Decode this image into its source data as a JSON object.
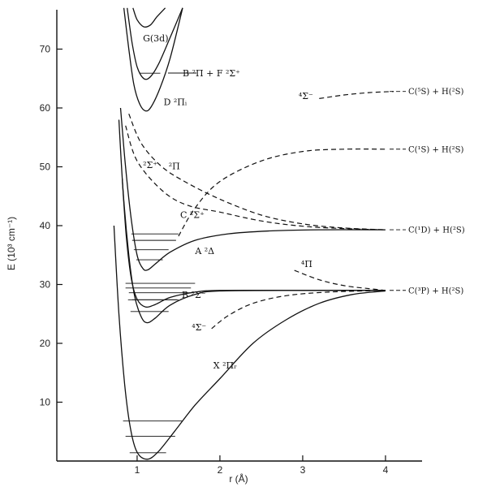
{
  "chart_data": {
    "type": "line",
    "title": "",
    "xlabel": "r (Å)",
    "ylabel": "E (10³ cm⁻¹)",
    "xlim": [
      0,
      4.8
    ],
    "ylim": [
      0,
      77
    ],
    "x_ticks": [
      1,
      2,
      3,
      4
    ],
    "y_ticks": [
      10,
      20,
      30,
      40,
      50,
      60,
      70
    ],
    "grid": false,
    "legend": "none",
    "series": [
      {
        "name": "X ²Πᵣ",
        "style": "solid",
        "points": [
          [
            0.72,
            40
          ],
          [
            0.78,
            25
          ],
          [
            0.85,
            13
          ],
          [
            0.92,
            5.5
          ],
          [
            1.0,
            1.5
          ],
          [
            1.12,
            0.3
          ],
          [
            1.25,
            1.5
          ],
          [
            1.45,
            5
          ],
          [
            1.7,
            9.5
          ],
          [
            2.0,
            14
          ],
          [
            2.4,
            20
          ],
          [
            2.8,
            24
          ],
          [
            3.2,
            26.8
          ],
          [
            3.6,
            28.3
          ],
          [
            4.0,
            28.9
          ]
        ]
      },
      {
        "name": "B ²Σ⁻",
        "style": "solid",
        "points": [
          [
            0.82,
            48
          ],
          [
            0.87,
            38
          ],
          [
            0.93,
            31
          ],
          [
            1.0,
            27.5
          ],
          [
            1.1,
            26.2
          ],
          [
            1.22,
            26.6
          ],
          [
            1.4,
            27.8
          ],
          [
            1.7,
            28.7
          ],
          [
            2.0,
            29
          ],
          [
            3.0,
            29
          ],
          [
            4.0,
            29
          ]
        ]
      },
      {
        "name": "A ²Δ",
        "style": "solid",
        "points": [
          [
            0.78,
            58
          ],
          [
            0.83,
            46
          ],
          [
            0.9,
            35
          ],
          [
            0.97,
            28
          ],
          [
            1.05,
            24.5
          ],
          [
            1.12,
            23.5
          ],
          [
            1.22,
            24.3
          ],
          [
            1.4,
            26.5
          ],
          [
            1.7,
            28.3
          ],
          [
            2.0,
            28.9
          ],
          [
            3.0,
            29
          ],
          [
            4.0,
            29
          ]
        ]
      },
      {
        "name": "C ²Σ⁺",
        "style": "solid",
        "points": [
          [
            0.8,
            60
          ],
          [
            0.86,
            50
          ],
          [
            0.93,
            41
          ],
          [
            1.0,
            35
          ],
          [
            1.07,
            32.7
          ],
          [
            1.13,
            32.5
          ],
          [
            1.22,
            33.5
          ],
          [
            1.4,
            35.5
          ],
          [
            1.7,
            37.5
          ],
          [
            2.1,
            38.6
          ],
          [
            2.6,
            39.1
          ],
          [
            3.2,
            39.3
          ],
          [
            4.0,
            39.3
          ]
        ]
      },
      {
        "name": "D ²Πᵢ",
        "style": "solid",
        "points": [
          [
            0.84,
            77
          ],
          [
            0.9,
            70
          ],
          [
            0.96,
            64
          ],
          [
            1.03,
            60.7
          ],
          [
            1.1,
            59.5
          ],
          [
            1.17,
            60.2
          ],
          [
            1.28,
            63.5
          ],
          [
            1.4,
            68.5
          ],
          [
            1.55,
            77
          ]
        ]
      },
      {
        "name": "B ²Π + F ²Σ⁺",
        "style": "solid",
        "points": [
          [
            0.88,
            77
          ],
          [
            0.94,
            71
          ],
          [
            1.0,
            67
          ],
          [
            1.08,
            65
          ],
          [
            1.16,
            65.3
          ],
          [
            1.26,
            67.5
          ],
          [
            1.4,
            72
          ],
          [
            1.55,
            77
          ]
        ]
      },
      {
        "name": "G (3d)",
        "style": "solid",
        "points": [
          [
            0.95,
            77
          ],
          [
            1.0,
            75
          ],
          [
            1.08,
            73.8
          ],
          [
            1.16,
            74.1
          ],
          [
            1.24,
            75.5
          ],
          [
            1.34,
            77
          ]
        ]
      },
      {
        "name": "⁴Σ⁻ (lower)",
        "style": "dashed",
        "points": [
          [
            1.9,
            22.5
          ],
          [
            2.1,
            24.7
          ],
          [
            2.4,
            26.8
          ],
          [
            2.8,
            28.1
          ],
          [
            3.3,
            28.7
          ],
          [
            4.0,
            29
          ]
        ]
      },
      {
        "name": "⁴Π",
        "style": "dashed",
        "points": [
          [
            2.9,
            32.4
          ],
          [
            3.2,
            30.8
          ],
          [
            3.5,
            29.8
          ],
          [
            3.8,
            29.3
          ],
          [
            4.0,
            29
          ]
        ]
      },
      {
        "name": "²Σ⁺",
        "style": "dashed",
        "points": [
          [
            0.86,
            57
          ],
          [
            1.0,
            51
          ],
          [
            1.3,
            46
          ],
          [
            1.6,
            43.5
          ],
          [
            2.0,
            42.3
          ],
          [
            2.5,
            40.8
          ],
          [
            3.0,
            39.9
          ],
          [
            3.5,
            39.5
          ],
          [
            4.0,
            39.3
          ]
        ]
      },
      {
        "name": "²Π",
        "style": "dashed",
        "points": [
          [
            0.9,
            59
          ],
          [
            1.05,
            54
          ],
          [
            1.3,
            50
          ],
          [
            1.6,
            47.3
          ],
          [
            2.0,
            44.5
          ],
          [
            2.5,
            41.8
          ],
          [
            3.0,
            40.3
          ],
          [
            3.5,
            39.6
          ],
          [
            4.0,
            39.3
          ]
        ]
      },
      {
        "name": "⁴Σ⁻ (upper)",
        "style": "dashed",
        "points": [
          [
            1.5,
            38.2
          ],
          [
            1.7,
            43
          ],
          [
            2.0,
            47.5
          ],
          [
            2.5,
            51
          ],
          [
            3.0,
            52.6
          ],
          [
            3.5,
            53
          ],
          [
            4.0,
            53
          ]
        ]
      },
      {
        "name": "⁴Σ⁻ (top)",
        "style": "dashed",
        "points": [
          [
            3.2,
            61.6
          ],
          [
            3.5,
            62.2
          ],
          [
            3.8,
            62.6
          ],
          [
            4.1,
            62.8
          ]
        ]
      }
    ],
    "vibrational_levels": [
      {
        "state": "X ²Πᵣ",
        "levels": [
          [
            1.4,
            0.91,
            1.35
          ],
          [
            4.2,
            0.86,
            1.46
          ],
          [
            6.8,
            0.83,
            1.55
          ]
        ]
      },
      {
        "state": "B ²Σ⁻",
        "levels": [
          [
            27.4,
            0.94,
            1.48
          ],
          [
            28.6,
            0.9,
            1.66
          ]
        ]
      },
      {
        "state": "A ²Δ",
        "levels": [
          [
            25.4,
            0.92,
            1.38
          ],
          [
            27.4,
            0.89,
            1.5
          ],
          [
            29.4,
            0.86,
            1.65
          ],
          [
            30.2,
            0.86,
            1.7
          ]
        ]
      },
      {
        "state": "C ²Σ⁺",
        "levels": [
          [
            34.2,
            0.99,
            1.31
          ],
          [
            35.9,
            0.96,
            1.38
          ],
          [
            37.5,
            0.94,
            1.47
          ],
          [
            38.6,
            0.93,
            1.5
          ]
        ]
      },
      {
        "state": "B ²Π + F ²Σ⁺",
        "levels": [
          [
            65.9,
            1.03,
            1.28
          ]
        ]
      }
    ],
    "labels": [
      {
        "text": "G(3d)",
        "x": 1.07,
        "y": 71.3
      },
      {
        "text": "B ²Π + F ²Σ⁺",
        "x": 1.55,
        "y": 65.4
      },
      {
        "text": "D ²Πᵢ",
        "x": 1.32,
        "y": 60.5
      },
      {
        "text": "⁴Σ⁻",
        "x": 2.95,
        "y": 61.5
      },
      {
        "text": "²Σ⁺",
        "x": 1.07,
        "y": 49.8
      },
      {
        "text": "²Π",
        "x": 1.38,
        "y": 49.6
      },
      {
        "text": "C ²Σ⁺",
        "x": 1.52,
        "y": 41.3
      },
      {
        "text": "A ²Δ",
        "x": 1.7,
        "y": 35.2
      },
      {
        "text": "B ²Σ⁻",
        "x": 1.54,
        "y": 27.7
      },
      {
        "text": "⁴Σ⁻",
        "x": 1.66,
        "y": 22.2
      },
      {
        "text": "⁴Π",
        "x": 2.98,
        "y": 33.0
      },
      {
        "text": "X ²Πᵣ",
        "x": 1.92,
        "y": 15.7
      }
    ],
    "asymptote_labels": [
      {
        "text": "C(⁵S) + H(²S)",
        "y": 62.8
      },
      {
        "text": "C(¹S) + H(²S)",
        "y": 53.0
      },
      {
        "text": "C(¹D) + H(²S)",
        "y": 39.3
      },
      {
        "text": "C(³P) + H(²S)",
        "y": 29.0
      }
    ]
  }
}
